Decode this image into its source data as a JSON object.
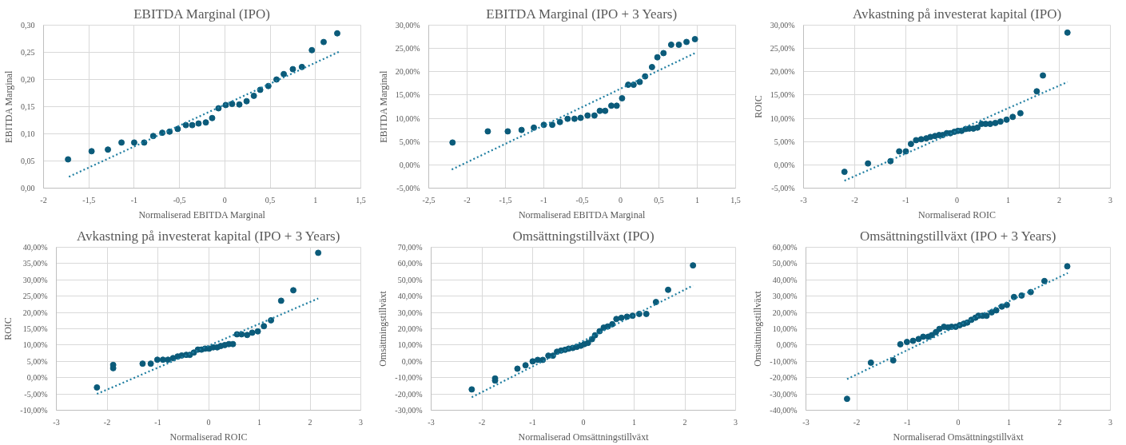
{
  "chart_data": [
    {
      "type": "scatter",
      "title": "EBITDA Marginal (IPO)",
      "xlabel": "Normaliserad EBITDA Marginal",
      "ylabel": "EBITDA Marginal",
      "grid": true,
      "xlim": [
        -2,
        1.5
      ],
      "xticks": [
        -2,
        {
          "value": -1.5,
          "label": "-1,5"
        },
        -1,
        {
          "value": -0.5,
          "label": "-0,5"
        },
        0,
        {
          "value": 0.5,
          "label": "0,5"
        },
        1,
        {
          "value": 1.5,
          "label": "1,5"
        }
      ],
      "ylim": [
        0,
        0.3
      ],
      "yticks": [
        {
          "value": 0,
          "label": "0,00"
        },
        {
          "value": 0.05,
          "label": "0,05"
        },
        {
          "value": 0.1,
          "label": "0,10"
        },
        {
          "value": 0.15,
          "label": "0,15"
        },
        {
          "value": 0.2,
          "label": "0,20"
        },
        {
          "value": 0.25,
          "label": "0,25"
        },
        {
          "value": 0.3,
          "label": "0,30"
        }
      ],
      "series": [
        {
          "marker": "circle",
          "color": "#0b5b7a",
          "x": [
            -1.73,
            -1.47,
            -1.29,
            -1.14,
            -1.0,
            -0.89,
            -0.79,
            -0.69,
            -0.61,
            -0.52,
            -0.43,
            -0.36,
            -0.29,
            -0.21,
            -0.14,
            -0.07,
            0.01,
            0.08,
            0.16,
            0.24,
            0.32,
            0.39,
            0.48,
            0.57,
            0.65,
            0.75,
            0.85,
            0.96,
            1.09,
            1.24
          ],
          "values": [
            0.053,
            0.068,
            0.071,
            0.084,
            0.084,
            0.084,
            0.096,
            0.102,
            0.104,
            0.109,
            0.116,
            0.116,
            0.119,
            0.121,
            0.129,
            0.147,
            0.153,
            0.155,
            0.154,
            0.16,
            0.17,
            0.181,
            0.188,
            0.2,
            0.21,
            0.219,
            0.223,
            0.254,
            0.269,
            0.285
          ]
        },
        {
          "type": "line",
          "color": "#1f7ea1",
          "line_style": "dotted",
          "x": [
            -1.72,
            1.26
          ],
          "values": [
            0.021,
            0.251
          ]
        }
      ]
    },
    {
      "type": "scatter",
      "title": "EBITDA Marginal (IPO + 3 Years)",
      "xlabel": "Normaliserad EBITDA Marginal",
      "ylabel": "EBITDA Marginal",
      "grid": true,
      "xlim": [
        -2.5,
        1.5
      ],
      "xticks": [
        {
          "value": -2.5,
          "label": "-2,5"
        },
        -2,
        {
          "value": -1.5,
          "label": "-1,5"
        },
        -1,
        {
          "value": -0.5,
          "label": "-0,5"
        },
        0,
        {
          "value": 0.5,
          "label": "0,5"
        },
        1,
        {
          "value": 1.5,
          "label": "1,5"
        }
      ],
      "ylim": [
        -5,
        30
      ],
      "yticks": [
        {
          "value": -5,
          "label": "-5,00%"
        },
        {
          "value": 0,
          "label": "0,00%"
        },
        {
          "value": 5,
          "label": "5,00%"
        },
        {
          "value": 10,
          "label": "10,00%"
        },
        {
          "value": 15,
          "label": "15,00%"
        },
        {
          "value": 20,
          "label": "20,00%"
        },
        {
          "value": 25,
          "label": "25,00%"
        },
        {
          "value": 30,
          "label": "30,00%"
        }
      ],
      "series": [
        {
          "marker": "circle",
          "color": "#0b5b7a",
          "x": [
            -2.19,
            -1.73,
            -1.47,
            -1.29,
            -1.13,
            -1.0,
            -0.89,
            -0.79,
            -0.69,
            -0.6,
            -0.52,
            -0.43,
            -0.34,
            -0.27,
            -0.2,
            -0.12,
            -0.05,
            0.02,
            0.1,
            0.17,
            0.25,
            0.32,
            0.41,
            0.48,
            0.56,
            0.66,
            0.76,
            0.86,
            0.97
          ],
          "values": [
            4.8,
            7.2,
            7.2,
            7.5,
            8.0,
            8.6,
            8.6,
            9.2,
            9.9,
            9.9,
            10.1,
            10.6,
            10.6,
            11.6,
            11.6,
            12.7,
            12.7,
            14.3,
            17.2,
            17.2,
            17.8,
            19.0,
            21.0,
            23.1,
            24.0,
            25.8,
            25.8,
            26.4,
            27.0
          ]
        },
        {
          "type": "line",
          "color": "#1f7ea1",
          "line_style": "dotted",
          "x": [
            -2.2,
            0.97
          ],
          "values": [
            -1.0,
            24.0
          ]
        }
      ]
    },
    {
      "type": "scatter",
      "title": "Avkastning på investerat kapital (IPO)",
      "xlabel": "Normaliserad ROIC",
      "ylabel": "ROIC",
      "grid": true,
      "xlim": [
        -3,
        3
      ],
      "xticks": [
        -3,
        -2,
        -1,
        0,
        1,
        2,
        3
      ],
      "ylim": [
        -5,
        30
      ],
      "yticks": [
        {
          "value": -5,
          "label": "-5,00%"
        },
        {
          "value": 0,
          "label": "0,00%"
        },
        {
          "value": 5,
          "label": "5,00%"
        },
        {
          "value": 10,
          "label": "10,00%"
        },
        {
          "value": 15,
          "label": "15,00%"
        },
        {
          "value": 20,
          "label": "20,00%"
        },
        {
          "value": 25,
          "label": "25,00%"
        },
        {
          "value": 30,
          "label": "30,00%"
        }
      ],
      "series": [
        {
          "marker": "circle",
          "color": "#0b5b7a",
          "x": [
            -2.2,
            -1.74,
            -1.3,
            -1.13,
            -1.0,
            -0.9,
            -0.8,
            -0.7,
            -0.6,
            -0.52,
            -0.43,
            -0.35,
            -0.28,
            -0.2,
            -0.13,
            -0.05,
            0.02,
            0.09,
            0.17,
            0.24,
            0.32,
            0.4,
            0.48,
            0.56,
            0.65,
            0.75,
            0.85,
            0.97,
            1.09,
            1.24,
            1.56,
            1.68,
            2.16
          ],
          "values": [
            -1.5,
            0.3,
            0.8,
            2.9,
            2.9,
            4.5,
            5.3,
            5.5,
            5.7,
            6.0,
            6.2,
            6.4,
            6.4,
            6.8,
            6.8,
            7.1,
            7.3,
            7.3,
            7.7,
            7.8,
            7.8,
            8.0,
            8.8,
            8.8,
            8.8,
            9.0,
            9.3,
            9.7,
            10.3,
            11.1,
            15.8,
            19.2,
            28.4
          ]
        },
        {
          "type": "line",
          "color": "#1f7ea1",
          "line_style": "dotted",
          "x": [
            -2.2,
            2.16
          ],
          "values": [
            -3.4,
            17.8
          ]
        }
      ]
    },
    {
      "type": "scatter",
      "title": "Avkastning på investerat kapital (IPO + 3 Years)",
      "xlabel": "Normaliserad ROIC",
      "ylabel": "ROIC",
      "grid": true,
      "xlim": [
        -3,
        3
      ],
      "xticks": [
        -3,
        -2,
        -1,
        0,
        1,
        2,
        3
      ],
      "ylim": [
        -10,
        40
      ],
      "yticks": [
        {
          "value": -10,
          "label": "-10,00%"
        },
        {
          "value": -5,
          "label": "-5,00%"
        },
        {
          "value": 0,
          "label": "0,00%"
        },
        {
          "value": 5,
          "label": "5,00%"
        },
        {
          "value": 10,
          "label": "10,00%"
        },
        {
          "value": 15,
          "label": "15,00%"
        },
        {
          "value": 20,
          "label": "20,00%"
        },
        {
          "value": 25,
          "label": "25,00%"
        },
        {
          "value": 30,
          "label": "30,00%"
        },
        {
          "value": 35,
          "label": "35,00%"
        },
        {
          "value": 40,
          "label": "40,00%"
        }
      ],
      "series": [
        {
          "marker": "circle",
          "color": "#0b5b7a",
          "x": [
            -2.2,
            -1.88,
            -1.88,
            -1.3,
            -1.14,
            -1.01,
            -0.9,
            -0.8,
            -0.7,
            -0.61,
            -0.53,
            -0.44,
            -0.37,
            -0.29,
            -0.21,
            -0.14,
            -0.07,
            0.01,
            0.09,
            0.17,
            0.24,
            0.32,
            0.4,
            0.48,
            0.56,
            0.65,
            0.76,
            0.86,
            0.97,
            1.09,
            1.23,
            1.43,
            1.67,
            2.16
          ],
          "values": [
            -3.0,
            3.9,
            2.9,
            4.3,
            4.3,
            5.5,
            5.5,
            5.5,
            6.0,
            6.5,
            6.8,
            7.0,
            7.0,
            7.7,
            8.6,
            8.6,
            8.9,
            8.9,
            9.3,
            9.3,
            9.7,
            10.0,
            10.3,
            10.3,
            13.3,
            13.3,
            13.1,
            13.8,
            14.2,
            15.8,
            17.6,
            23.6,
            26.8,
            38.3
          ]
        },
        {
          "type": "line",
          "color": "#1f7ea1",
          "line_style": "dotted",
          "x": [
            -2.2,
            2.16
          ],
          "values": [
            -5.0,
            24.3
          ]
        }
      ]
    },
    {
      "type": "scatter",
      "title": "Omsättningstillväxt (IPO)",
      "xlabel": "Normaliserad Omsättningstillväxt",
      "ylabel": "Omsättningstillväxt",
      "grid": true,
      "xlim": [
        -3,
        3
      ],
      "xticks": [
        -3,
        -2,
        -1,
        0,
        1,
        2,
        3
      ],
      "ylim": [
        -30,
        70
      ],
      "yticks": [
        {
          "value": -30,
          "label": "-30,00%"
        },
        {
          "value": -20,
          "label": "-20,00%"
        },
        {
          "value": -10,
          "label": "-10,00%"
        },
        {
          "value": 0,
          "label": "0,00%"
        },
        {
          "value": 10,
          "label": "10,00%"
        },
        {
          "value": 20,
          "label": "20,00%"
        },
        {
          "value": 30,
          "label": "30,00%"
        },
        {
          "value": 40,
          "label": "40,00%"
        },
        {
          "value": 50,
          "label": "50,00%"
        },
        {
          "value": 60,
          "label": "60,00%"
        },
        {
          "value": 70,
          "label": "70,00%"
        }
      ],
      "series": [
        {
          "marker": "circle",
          "color": "#0b5b7a",
          "x": [
            -2.2,
            -1.74,
            -1.74,
            -1.3,
            -1.14,
            -1.0,
            -0.9,
            -0.8,
            -0.69,
            -0.6,
            -0.52,
            -0.44,
            -0.36,
            -0.29,
            -0.21,
            -0.13,
            -0.05,
            0.02,
            0.09,
            0.17,
            0.23,
            0.32,
            0.4,
            0.48,
            0.57,
            0.65,
            0.75,
            0.86,
            0.97,
            1.1,
            1.24,
            1.43,
            1.67,
            2.16
          ],
          "values": [
            -17.2,
            -10.5,
            -11.8,
            -4.5,
            -2.4,
            0.0,
            0.9,
            0.9,
            3.5,
            3.5,
            5.9,
            6.6,
            7.1,
            7.8,
            8.2,
            8.9,
            9.6,
            10.6,
            11.3,
            13.6,
            16.0,
            18.5,
            20.7,
            21.4,
            22.8,
            26.0,
            26.7,
            27.4,
            28.0,
            29.1,
            29.1,
            36.4,
            43.9,
            58.9
          ]
        },
        {
          "type": "line",
          "color": "#1f7ea1",
          "line_style": "dotted",
          "x": [
            -2.2,
            2.16
          ],
          "values": [
            -22.0,
            46.5
          ]
        }
      ]
    },
    {
      "type": "scatter",
      "title": "Omsättningstillväxt (IPO + 3 Years)",
      "xlabel": "Normaliserad Omsättningstillväxt",
      "ylabel": "Omsättningstillväxt",
      "grid": true,
      "xlim": [
        -3,
        3
      ],
      "xticks": [
        -3,
        -2,
        -1,
        0,
        1,
        2,
        3
      ],
      "ylim": [
        -40,
        60
      ],
      "yticks": [
        {
          "value": -40,
          "label": "-40,00%"
        },
        {
          "value": -30,
          "label": "-30,00%"
        },
        {
          "value": -20,
          "label": "-20,00%"
        },
        {
          "value": -10,
          "label": "-10,00%"
        },
        {
          "value": 0,
          "label": "0,00%"
        },
        {
          "value": 10,
          "label": "10,00%"
        },
        {
          "value": 20,
          "label": "20,00%"
        },
        {
          "value": 30,
          "label": "30,00%"
        },
        {
          "value": 40,
          "label": "40,00%"
        },
        {
          "value": 50,
          "label": "50,00%"
        },
        {
          "value": 60,
          "label": "60,00%"
        }
      ],
      "series": [
        {
          "marker": "circle",
          "color": "#0b5b7a",
          "x": [
            -2.19,
            -1.72,
            -1.28,
            -1.14,
            -1.01,
            -0.89,
            -0.78,
            -0.69,
            -0.59,
            -0.52,
            -0.44,
            -0.37,
            -0.28,
            -0.2,
            -0.13,
            -0.05,
            0.03,
            0.11,
            0.18,
            0.26,
            0.34,
            0.4,
            0.48,
            0.56,
            0.66,
            0.75,
            0.86,
            0.96,
            1.1,
            1.25,
            1.43,
            1.7,
            2.15
          ],
          "values": [
            -33.0,
            -10.8,
            -9.4,
            0.5,
            1.9,
            2.6,
            3.7,
            5.1,
            5.1,
            6.1,
            7.9,
            9.9,
            11.2,
            10.8,
            11.2,
            11.2,
            12.2,
            13.1,
            13.8,
            15.5,
            16.8,
            18.0,
            18.0,
            18.0,
            20.1,
            21.3,
            23.6,
            24.6,
            29.5,
            30.4,
            32.5,
            39.3,
            48.3
          ]
        },
        {
          "type": "line",
          "color": "#1f7ea1",
          "line_style": "dotted",
          "x": [
            -2.19,
            2.16
          ],
          "values": [
            -20.9,
            44.2
          ]
        }
      ]
    }
  ]
}
